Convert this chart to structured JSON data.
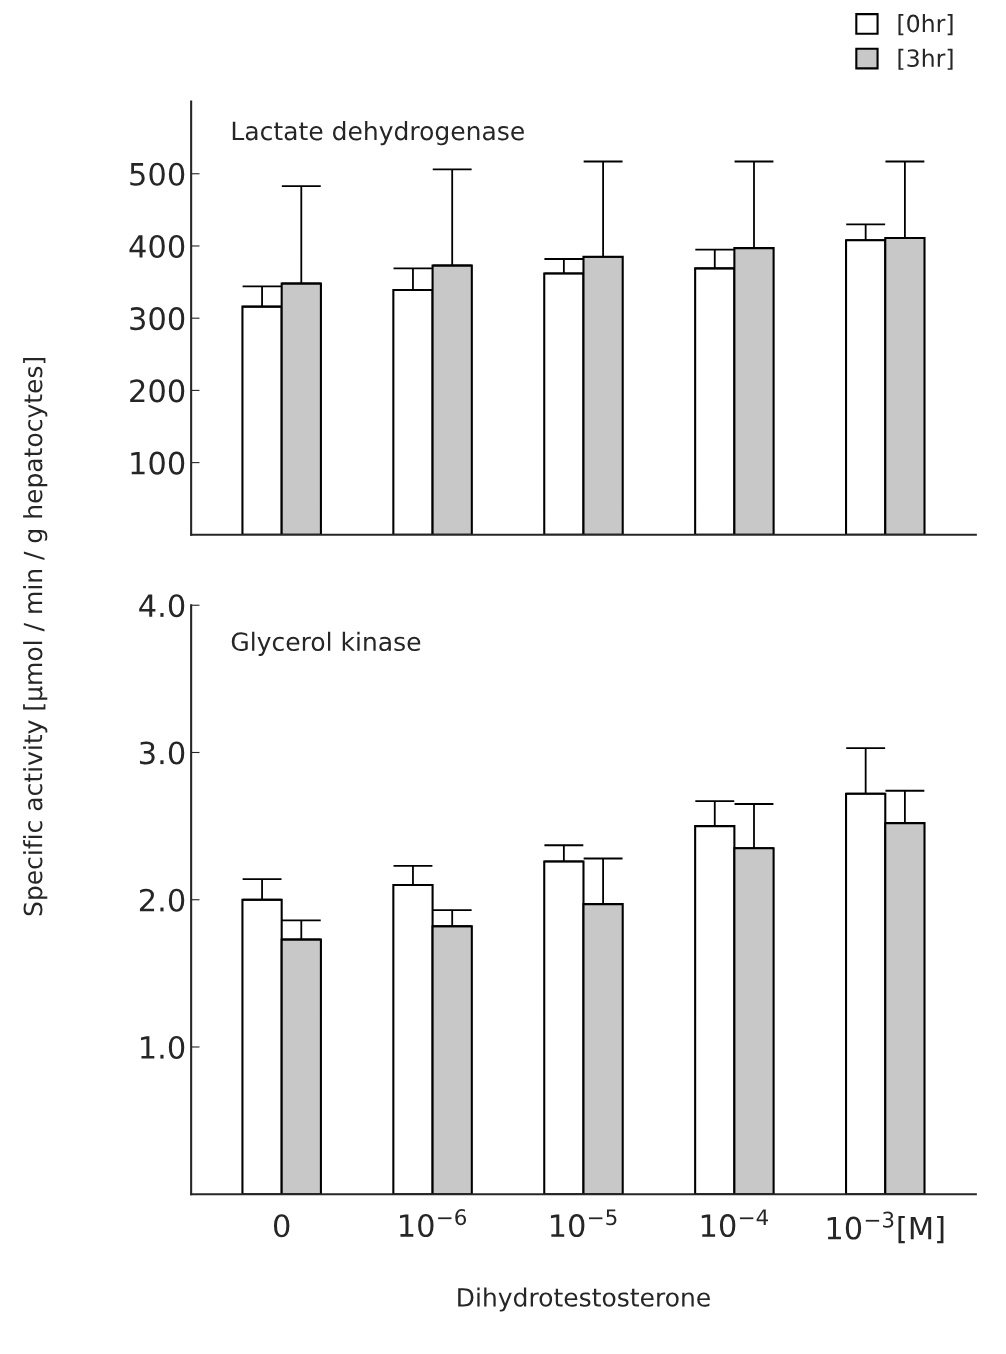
{
  "chart_data": [
    {
      "type": "bar",
      "title": "Lactate dehydrogenase",
      "ylabel": "Specific activity [µmol / min / g hepatocytes]",
      "categories": [
        null,
        null,
        null,
        null,
        null
      ],
      "ylim": [
        0,
        600
      ],
      "yticks": [
        100,
        200,
        300,
        400,
        500
      ],
      "tick_labels": "y",
      "grid": false,
      "legend": "top right",
      "series": [
        {
          "name": "[0hr]",
          "color": "#ffffff",
          "values": [
            316,
            339,
            362,
            369,
            408
          ],
          "errors": [
            [
              316,
              344
            ],
            [
              339,
              369
            ],
            [
              362,
              382
            ],
            [
              369,
              395
            ],
            [
              408,
              430
            ]
          ]
        },
        {
          "name": "[3hr]",
          "color": "#c8c8c8",
          "values": [
            348,
            373,
            385,
            397,
            411
          ],
          "errors": [
            [
              348,
              483
            ],
            [
              373,
              506
            ],
            [
              385,
              517
            ],
            [
              397,
              517
            ],
            [
              411,
              517
            ]
          ]
        }
      ]
    },
    {
      "type": "bar",
      "title": "Glycerol kinase",
      "xlabel": "Dihydrotestosterone",
      "categories": [
        "0",
        "10$^{−6}$",
        "10$^{−5}$",
        "10$^{−4}$",
        "10$^{−3}$[M]"
      ],
      "ylim": [
        0,
        4
      ],
      "yticks": [
        {
          "value": 1,
          "label": "1.0"
        },
        {
          "value": 2,
          "label": "2.0"
        },
        {
          "value": 3,
          "label": "3.0"
        },
        {
          "value": 4,
          "label": "4.0"
        }
      ],
      "grid": false,
      "legend": false,
      "series": [
        {
          "color": "#ffffff",
          "values": [
            2.0,
            2.1,
            2.26,
            2.5,
            2.72
          ],
          "errors": [
            [
              2.0,
              2.14
            ],
            [
              2.1,
              2.23
            ],
            [
              2.26,
              2.37
            ],
            [
              2.5,
              2.67
            ],
            [
              2.72,
              3.03
            ]
          ]
        },
        {
          "color": "#c8c8c8",
          "values": [
            1.73,
            1.82,
            1.97,
            2.35,
            2.52
          ],
          "errors": [
            [
              1.73,
              1.86
            ],
            [
              1.82,
              1.93
            ],
            [
              1.97,
              2.28
            ],
            [
              2.35,
              2.65
            ],
            [
              2.52,
              2.74
            ]
          ]
        }
      ]
    }
  ]
}
